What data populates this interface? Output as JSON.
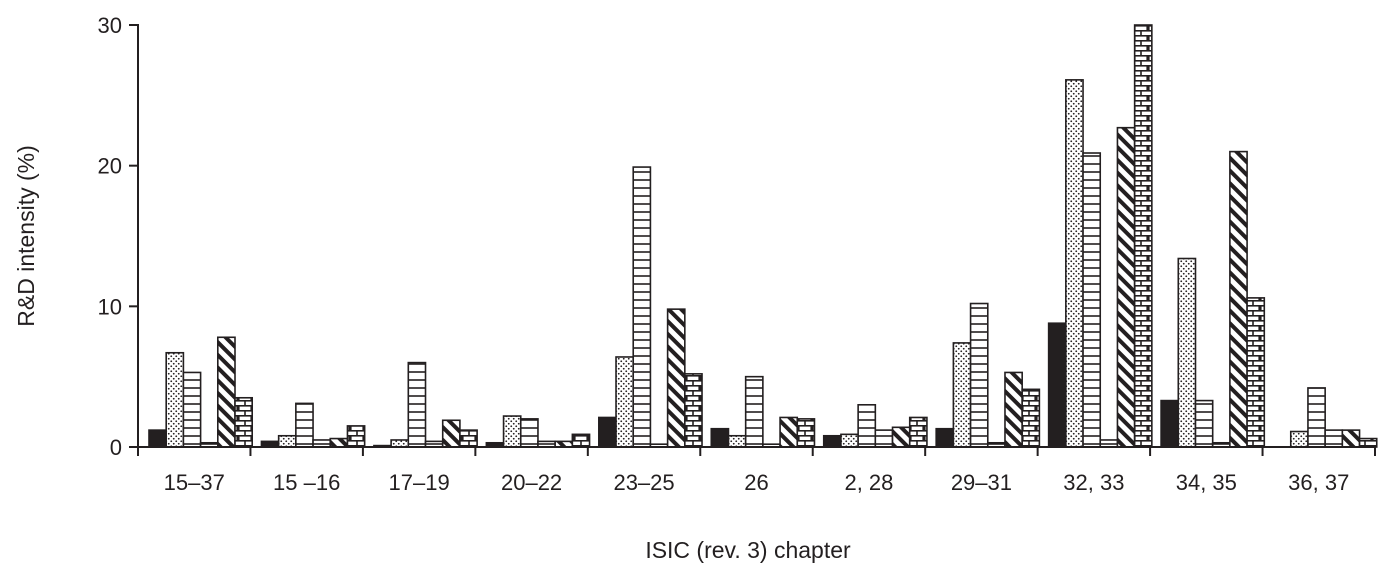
{
  "chart_data": {
    "type": "bar",
    "xlabel": "ISIC (rev. 3) chapter",
    "ylabel": "R&D intensity (%)",
    "ylim": [
      0,
      30
    ],
    "yticks": [
      "0",
      "10",
      "20",
      "30"
    ],
    "ytick_values": [
      0,
      10,
      20,
      30
    ],
    "grid": false,
    "categories": [
      "15–37",
      "15 –16",
      "17–19",
      "20–22",
      "23–25",
      "26",
      "2, 28",
      "29–31",
      "32, 33",
      "34, 35",
      "36, 37"
    ],
    "series": [
      {
        "pattern": "solid-black",
        "values": [
          1.2,
          0.4,
          0.1,
          0.3,
          2.1,
          1.3,
          0.8,
          1.3,
          8.8,
          3.3,
          0.0
        ]
      },
      {
        "pattern": "dotted",
        "values": [
          6.7,
          0.8,
          0.5,
          2.2,
          6.4,
          0.8,
          0.9,
          7.4,
          26.1,
          13.4,
          1.1
        ]
      },
      {
        "pattern": "horizontal-lines",
        "values": [
          5.3,
          3.1,
          6.0,
          2.0,
          19.9,
          5.0,
          3.0,
          10.2,
          20.9,
          3.3,
          4.2
        ]
      },
      {
        "pattern": "horizontal-lines",
        "values": [
          0.3,
          0.5,
          0.4,
          0.4,
          0.2,
          0.2,
          1.2,
          0.3,
          0.5,
          0.3,
          1.2
        ]
      },
      {
        "pattern": "diagonal-hatch",
        "values": [
          7.8,
          0.6,
          1.9,
          0.4,
          9.8,
          2.1,
          1.4,
          5.3,
          22.7,
          21.0,
          1.2
        ]
      },
      {
        "pattern": "brick",
        "values": [
          3.5,
          1.5,
          1.2,
          0.9,
          5.2,
          2.0,
          2.1,
          4.1,
          30.0,
          10.6,
          0.6
        ]
      }
    ]
  }
}
